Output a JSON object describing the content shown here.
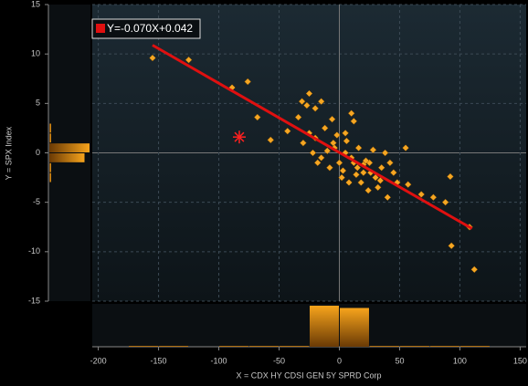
{
  "chart_data": {
    "type": "scatter",
    "xlabel": "X = CDX HY CDSI GEN 5Y SPRD Corp",
    "ylabel": "Y = SPX Index",
    "xlim": [
      -205,
      155
    ],
    "ylim": [
      -15,
      15
    ],
    "xticks": [
      -200,
      -150,
      -100,
      -50,
      0,
      50,
      100,
      150
    ],
    "yticks": [
      15,
      10,
      5,
      0,
      -5,
      -10,
      -15
    ],
    "grid": true,
    "color": "#f5a623",
    "x": [
      -155,
      -125,
      -89,
      -76,
      -68,
      -57,
      -43,
      -34,
      -31,
      -27,
      -25,
      -20,
      -15,
      -6,
      5,
      10,
      12,
      55,
      57,
      68,
      78,
      88,
      92,
      93,
      108,
      112,
      40,
      35,
      45,
      -10,
      -15,
      -5,
      0,
      5,
      10,
      15,
      20,
      25,
      30,
      -20,
      -12,
      -8,
      2,
      18,
      22,
      28,
      32,
      38,
      42,
      48,
      -2,
      6,
      14,
      24,
      -18,
      8,
      16,
      26,
      34,
      -25,
      -30,
      -22,
      3,
      12,
      20,
      -4
    ],
    "y": [
      9.6,
      9.4,
      6.6,
      7.2,
      3.6,
      1.3,
      2.2,
      3.6,
      5.2,
      4.8,
      6.0,
      4.5,
      5.2,
      3.4,
      2.0,
      4.0,
      3.2,
      0.5,
      -3.2,
      -4.2,
      -4.5,
      -5.0,
      -2.4,
      -9.4,
      -7.5,
      -11.8,
      -4.5,
      -1.5,
      -2,
      0.2,
      -0.5,
      1,
      -1,
      0,
      -0.5,
      -1.5,
      -2,
      -1,
      -2.5,
      1.5,
      2.5,
      -1.5,
      -2.5,
      -3,
      -0.8,
      0.3,
      -3.5,
      0,
      -1,
      -3,
      1.8,
      1.2,
      -2.2,
      -3.8,
      -1,
      -3,
      0.5,
      -2,
      -2.8,
      2,
      1,
      0,
      -1.8,
      -1,
      -1.2,
      0.5
    ],
    "current_point": {
      "x": -83,
      "y": 1.6,
      "color": "#ff2020"
    },
    "regression": {
      "label": "Y=-0.070X+0.042",
      "slope": -0.07,
      "intercept": 0.042,
      "x_range": [
        -155,
        110
      ],
      "color": "#e01010"
    },
    "x_histogram": {
      "bins": [
        -200,
        -175,
        -150,
        -125,
        -100,
        -75,
        -50,
        -25,
        0,
        25,
        50,
        75,
        100,
        125,
        150
      ],
      "counts": [
        0,
        1,
        1,
        0,
        1,
        1,
        1,
        90,
        85,
        2,
        2,
        1,
        1,
        0
      ]
    },
    "y_histogram": {
      "bins": [
        -3,
        -2,
        -1,
        0,
        1,
        2,
        3
      ],
      "counts": [
        2,
        3,
        70,
        80,
        3,
        2
      ]
    }
  }
}
